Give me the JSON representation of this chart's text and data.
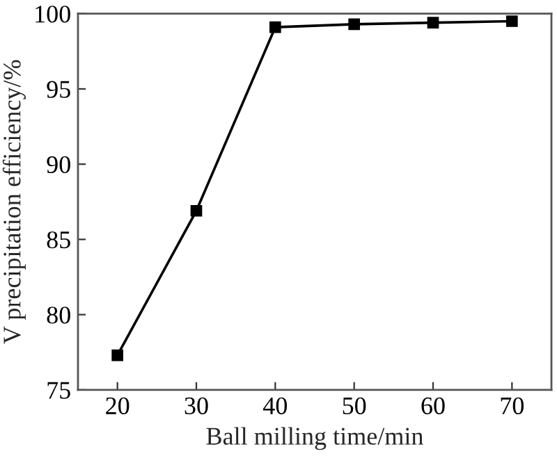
{
  "chart_data": {
    "type": "line",
    "xlabel": "Ball milling time/min",
    "ylabel": "V precipitation efficiency/%",
    "x": [
      20,
      30,
      40,
      50,
      60,
      70
    ],
    "series": [
      {
        "color": "#000000",
        "values": [
          77.3,
          86.9,
          99.1,
          99.3,
          99.4,
          99.5
        ]
      }
    ],
    "xlim": [
      15,
      75
    ],
    "xticks": [
      20,
      30,
      40,
      50,
      60,
      70
    ],
    "ylim": [
      75,
      100
    ],
    "yticks": [
      75,
      80,
      85,
      90,
      95,
      100
    ],
    "marker": "square",
    "line_style": "solid",
    "grid": false,
    "legend": false
  }
}
